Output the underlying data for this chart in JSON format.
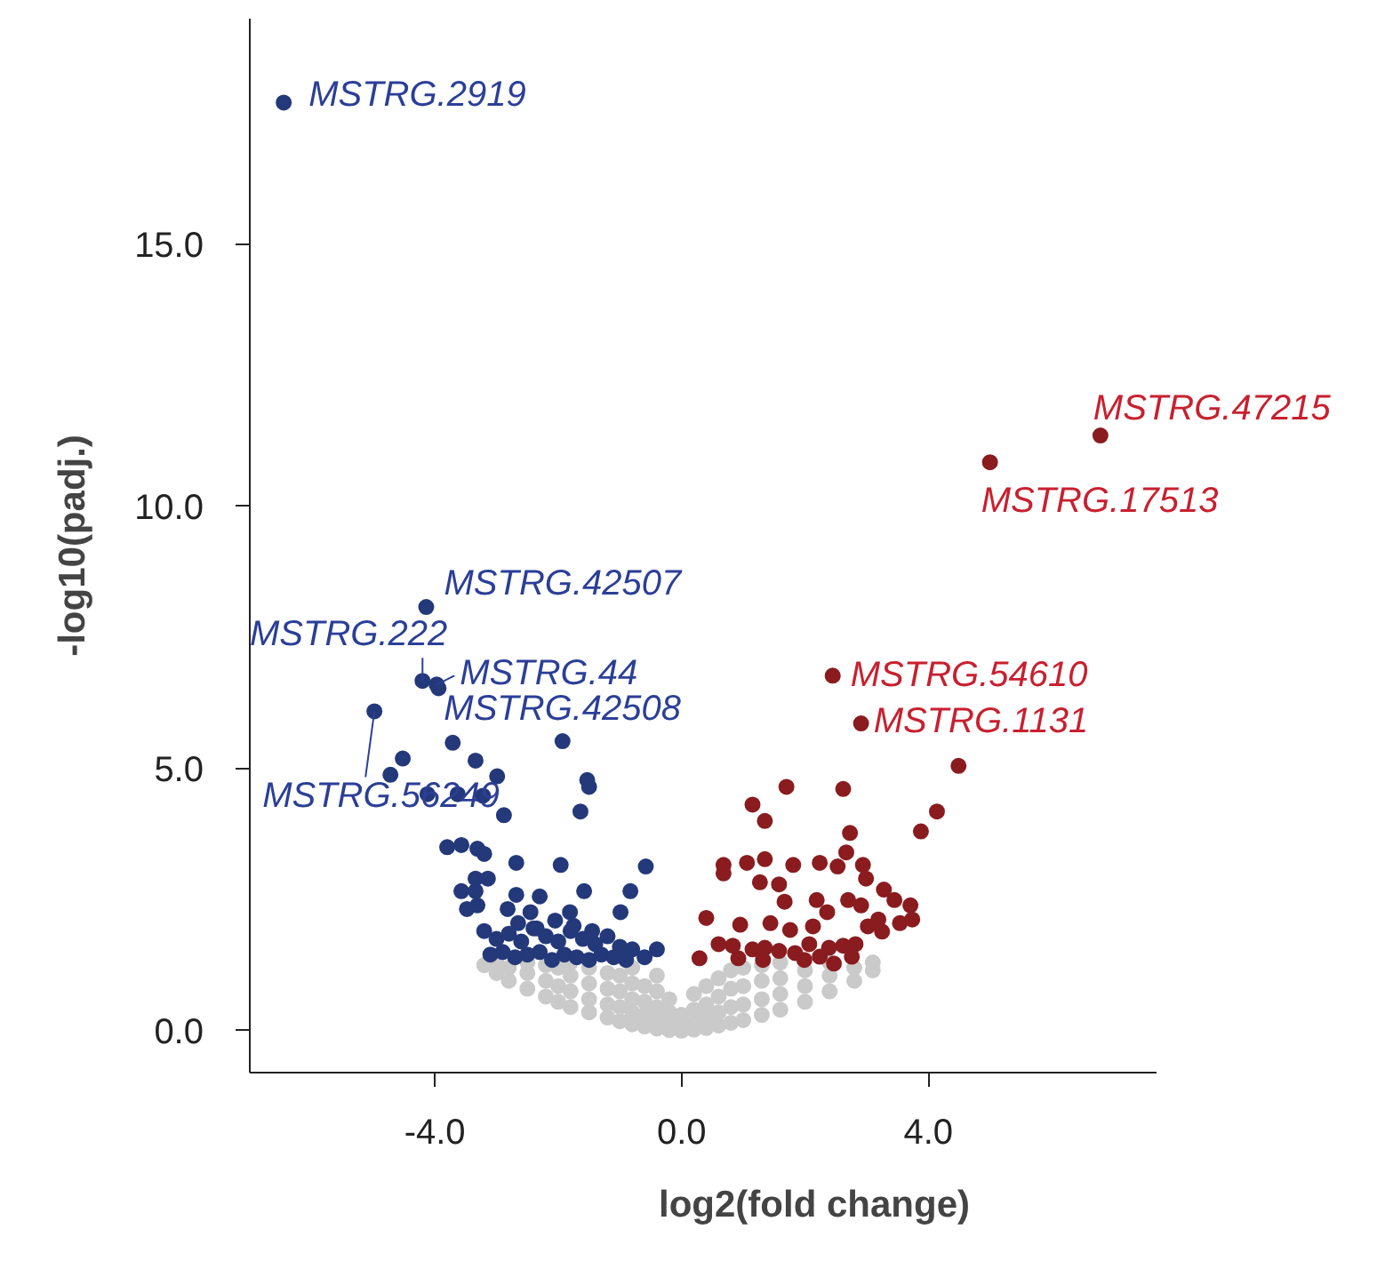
{
  "chart_data": {
    "type": "scatter",
    "xlabel": "log2(fold change)",
    "ylabel": "-log10(padj.)",
    "xlim": [
      -7,
      7.7
    ],
    "ylim": [
      -0.8,
      19.3
    ],
    "xticks": [
      {
        "value": -4,
        "label": "-4.0"
      },
      {
        "value": 0,
        "label": "0.0"
      },
      {
        "value": 4,
        "label": "4.0"
      }
    ],
    "yticks": [
      {
        "value": 0,
        "label": "0.0"
      },
      {
        "value": 5,
        "label": "5.0"
      },
      {
        "value": 10,
        "label": "10.0"
      },
      {
        "value": 15,
        "label": "15.0"
      }
    ],
    "grid": false,
    "marker": "circle",
    "series": [
      {
        "color": "#c9cac9",
        "x": [
          -3.2,
          -3.0,
          -3.0,
          -2.8,
          -2.8,
          -2.5,
          -2.5,
          -2.5,
          -2.2,
          -2.2,
          -2.2,
          -2.0,
          -2.0,
          -2.0,
          -1.8,
          -1.8,
          -1.8,
          -1.8,
          -1.5,
          -1.5,
          -1.5,
          -1.5,
          -1.2,
          -1.2,
          -1.2,
          -1.2,
          -1.0,
          -1.0,
          -1.0,
          -1.0,
          -0.8,
          -0.8,
          -0.8,
          -0.8,
          -0.8,
          -0.6,
          -0.6,
          -0.6,
          -0.6,
          -0.4,
          -0.4,
          -0.4,
          -0.4,
          -0.4,
          -0.2,
          -0.2,
          -0.2,
          -0.2,
          0,
          0,
          0,
          0.2,
          0.2,
          0.2,
          0.2,
          0.4,
          0.4,
          0.4,
          0.4,
          0.6,
          0.6,
          0.6,
          0.6,
          0.8,
          0.8,
          0.8,
          0.8,
          1.0,
          1.0,
          1.0,
          1.0,
          1.3,
          1.3,
          1.3,
          1.3,
          1.6,
          1.6,
          1.6,
          1.6,
          2.0,
          2.0,
          2.0,
          2.4,
          2.4,
          2.4,
          2.8,
          2.8,
          3.1,
          3.1
        ],
        "values": [
          1.25,
          1.1,
          1.3,
          0.95,
          1.2,
          0.8,
          1.1,
          1.3,
          0.65,
          0.95,
          1.25,
          0.55,
          0.85,
          1.2,
          0.45,
          0.75,
          1.05,
          1.3,
          0.35,
          0.6,
          0.9,
          1.2,
          0.25,
          0.5,
          0.8,
          1.1,
          0.18,
          0.45,
          0.75,
          1.05,
          0.12,
          0.35,
          0.6,
          0.9,
          1.2,
          0.08,
          0.3,
          0.55,
          0.85,
          0.04,
          0.2,
          0.45,
          0.75,
          1.05,
          0.01,
          0.15,
          0.35,
          0.6,
          0,
          0.1,
          0.3,
          0.02,
          0.15,
          0.4,
          0.7,
          0.05,
          0.25,
          0.5,
          0.85,
          0.1,
          0.35,
          0.65,
          1.0,
          0.15,
          0.45,
          0.8,
          1.15,
          0.2,
          0.5,
          0.85,
          1.2,
          0.3,
          0.6,
          0.95,
          1.25,
          0.4,
          0.7,
          1.0,
          1.3,
          0.55,
          0.85,
          1.15,
          0.75,
          1.05,
          1.3,
          0.95,
          1.2,
          1.15,
          1.3
        ]
      },
      {
        "color": "#24397a",
        "x": [
          -6.45,
          -4.14,
          -4.2,
          -3.97,
          -3.94,
          -4.98,
          -3.71,
          -1.93,
          -4.52,
          -4.72,
          -3.34,
          -2.99,
          -1.53,
          -1.5,
          -4.12,
          -3.63,
          -3.22,
          -1.64,
          -2.88,
          -3.8,
          -3.57,
          -3.31,
          -3.2,
          -2.68,
          -1.96,
          -0.58,
          -3.34,
          -3.14,
          -3.57,
          -3.34,
          -2.68,
          -2.3,
          -1.58,
          -0.83,
          -3.48,
          -3.31,
          -2.82,
          -2.45,
          -1.81,
          -0.99,
          -3.2,
          -3.0,
          -2.8,
          -2.6,
          -2.4,
          -2.2,
          -2.0,
          -1.8,
          -1.6,
          -1.4,
          -1.2,
          -1.0,
          -0.8,
          -3.1,
          -2.9,
          -2.7,
          -2.5,
          -2.3,
          -2.1,
          -1.9,
          -1.7,
          -1.5,
          -1.3,
          -1.1,
          -0.9,
          -0.6,
          -0.4,
          -2.65,
          -2.35,
          -2.05,
          -1.75,
          -1.45
        ],
        "values": [
          17.7,
          8.08,
          6.67,
          6.6,
          6.53,
          6.09,
          5.49,
          5.52,
          5.19,
          4.88,
          5.15,
          4.85,
          4.78,
          4.65,
          4.51,
          4.51,
          4.48,
          4.18,
          4.11,
          3.5,
          3.54,
          3.47,
          3.37,
          3.2,
          3.16,
          3.13,
          2.9,
          2.9,
          2.66,
          2.66,
          2.59,
          2.56,
          2.66,
          2.66,
          2.32,
          2.39,
          2.32,
          2.26,
          2.26,
          2.26,
          1.9,
          1.75,
          1.85,
          1.7,
          1.95,
          1.8,
          1.7,
          1.9,
          1.75,
          1.65,
          1.8,
          1.6,
          1.55,
          1.45,
          1.5,
          1.4,
          1.45,
          1.5,
          1.35,
          1.45,
          1.4,
          1.35,
          1.45,
          1.4,
          1.35,
          1.4,
          1.55,
          2.05,
          1.95,
          2.1,
          2.0,
          1.9
        ]
      },
      {
        "color": "#8a1c1f",
        "x": [
          6.79,
          5.0,
          2.45,
          2.91,
          4.49,
          4.14,
          3.88,
          1.7,
          2.62,
          1.15,
          1.35,
          2.73,
          2.67,
          0.68,
          0.68,
          1.06,
          1.35,
          1.81,
          2.24,
          2.53,
          2.94,
          1.27,
          1.58,
          2.99,
          3.28,
          3.45,
          3.71,
          1.67,
          2.19,
          2.7,
          2.91,
          2.36,
          0.4,
          0.95,
          1.44,
          1.76,
          2.13,
          3.02,
          3.19,
          3.54,
          3.25,
          3.74,
          0.6,
          0.83,
          1.15,
          1.35,
          1.58,
          1.84,
          2.07,
          2.39,
          2.62,
          2.82,
          0.29,
          0.92,
          1.32,
          1.99,
          2.24,
          2.47,
          2.76
        ],
        "values": [
          11.35,
          10.84,
          6.77,
          5.86,
          5.05,
          4.18,
          3.8,
          4.65,
          4.61,
          4.31,
          4.0,
          3.77,
          3.4,
          3.16,
          3.0,
          3.2,
          3.27,
          3.16,
          3.2,
          3.13,
          3.16,
          2.83,
          2.79,
          2.9,
          2.69,
          2.49,
          2.39,
          2.46,
          2.49,
          2.49,
          2.39,
          2.26,
          2.15,
          2.02,
          2.05,
          1.92,
          1.99,
          1.99,
          2.12,
          2.05,
          1.89,
          2.12,
          1.65,
          1.62,
          1.55,
          1.58,
          1.52,
          1.48,
          1.65,
          1.58,
          1.62,
          1.65,
          1.38,
          1.38,
          1.35,
          1.35,
          1.41,
          1.28,
          1.41
        ]
      }
    ],
    "annotations": [
      {
        "text": "MSTRG.2919",
        "x": -6.45,
        "y": 17.7
      },
      {
        "text": "MSTRG.47215",
        "x": 6.79,
        "y": 11.35
      },
      {
        "text": "MSTRG.17513",
        "x": 5.0,
        "y": 10.84
      },
      {
        "text": "MSTRG.42507",
        "x": -4.14,
        "y": 8.08
      },
      {
        "text": "MSTRG.222",
        "x": -4.2,
        "y": 6.67
      },
      {
        "text": "MSTRG.44",
        "x": -3.97,
        "y": 6.6
      },
      {
        "text": "MSTRG.42508",
        "x": -3.94,
        "y": 6.53
      },
      {
        "text": "MSTRG.54610",
        "x": 2.45,
        "y": 6.77
      },
      {
        "text": "MSTRG.1131",
        "x": 2.91,
        "y": 5.86
      },
      {
        "text": "MSTRG.56249",
        "x": -4.98,
        "y": 6.09
      }
    ]
  }
}
